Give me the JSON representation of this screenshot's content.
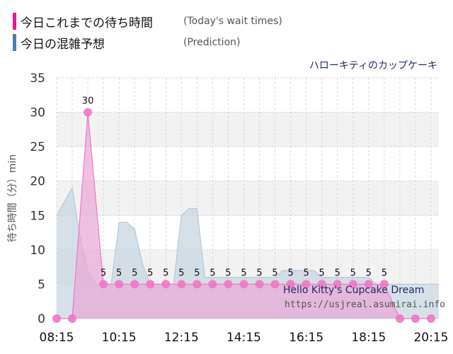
{
  "legend": {
    "today_label": "今日これまでの待ち時間",
    "today_sub": "(Today's wait times)",
    "prediction_label": "今日の混雑予想",
    "prediction_sub": "(Prediction)"
  },
  "attraction_name_ja": "ハローキティのカップケーキ",
  "attraction_name_en": "Hello Kitty's Cupcake Dream",
  "site_url": "https://usjreal.asumirai.info",
  "colors": {
    "today": "#f0148c",
    "today_fill": "#e9a6d4",
    "today_point": "#ee77c4",
    "prediction": "#4a7fb0",
    "prediction_fill": "#c8d6e2"
  },
  "chart_data": {
    "type": "area",
    "ylabel": "待ち時間（分）min",
    "ylim": [
      0,
      35
    ],
    "yticks": [
      0,
      5,
      10,
      15,
      20,
      25,
      30,
      35
    ],
    "xticks": [
      "08:15",
      "10:15",
      "12:15",
      "14:15",
      "16:15",
      "18:15",
      "20:15"
    ],
    "grid": true,
    "series": [
      {
        "name": "今日これまでの待ち時間",
        "type": "area",
        "x": [
          "08:15",
          "08:45",
          "09:15",
          "09:45",
          "10:15",
          "10:45",
          "11:15",
          "11:45",
          "12:15",
          "12:45",
          "13:15",
          "13:45",
          "14:15",
          "14:45",
          "15:15",
          "15:45",
          "16:15",
          "16:45",
          "17:15",
          "17:45",
          "18:15",
          "18:45",
          "19:15",
          "19:45",
          "20:15"
        ],
        "values": [
          0,
          0,
          30,
          5,
          5,
          5,
          5,
          5,
          5,
          5,
          5,
          5,
          5,
          5,
          5,
          5,
          5,
          5,
          5,
          5,
          5,
          5,
          0,
          0,
          0
        ],
        "labels": [
          "",
          "",
          "30",
          "5",
          "5",
          "5",
          "5",
          "5",
          "5",
          "5",
          "5",
          "5",
          "5",
          "5",
          "5",
          "5",
          "5",
          "5",
          "5",
          "5",
          "5",
          "5",
          "",
          "",
          ""
        ]
      },
      {
        "name": "今日の混雑予想",
        "type": "area",
        "x": [
          "08:15",
          "08:45",
          "09:00",
          "09:15",
          "09:30",
          "09:45",
          "10:00",
          "10:15",
          "10:30",
          "10:45",
          "11:00",
          "11:15",
          "11:30",
          "11:45",
          "12:00",
          "12:15",
          "12:30",
          "12:45",
          "13:00",
          "13:15",
          "13:30",
          "13:45",
          "14:00",
          "14:15",
          "14:30",
          "14:45",
          "15:00",
          "15:15",
          "15:30",
          "15:45",
          "16:00",
          "16:15",
          "16:30",
          "16:45",
          "17:00",
          "17:15",
          "17:30",
          "17:45",
          "18:00",
          "18:15",
          "18:30",
          "18:45",
          "19:00",
          "19:15",
          "19:30",
          "19:45",
          "20:00",
          "20:15",
          "20:30"
        ],
        "values": [
          15,
          19,
          12,
          7,
          5,
          5,
          5,
          14,
          14,
          13,
          8,
          5,
          5,
          5,
          5,
          15,
          16,
          16,
          6,
          6,
          6,
          6,
          6,
          6,
          6,
          6,
          6,
          6,
          7,
          7,
          7,
          7,
          7,
          6,
          6,
          6,
          6,
          6,
          6,
          6,
          5,
          5,
          5,
          5,
          5,
          5,
          5,
          5,
          5
        ]
      }
    ]
  }
}
